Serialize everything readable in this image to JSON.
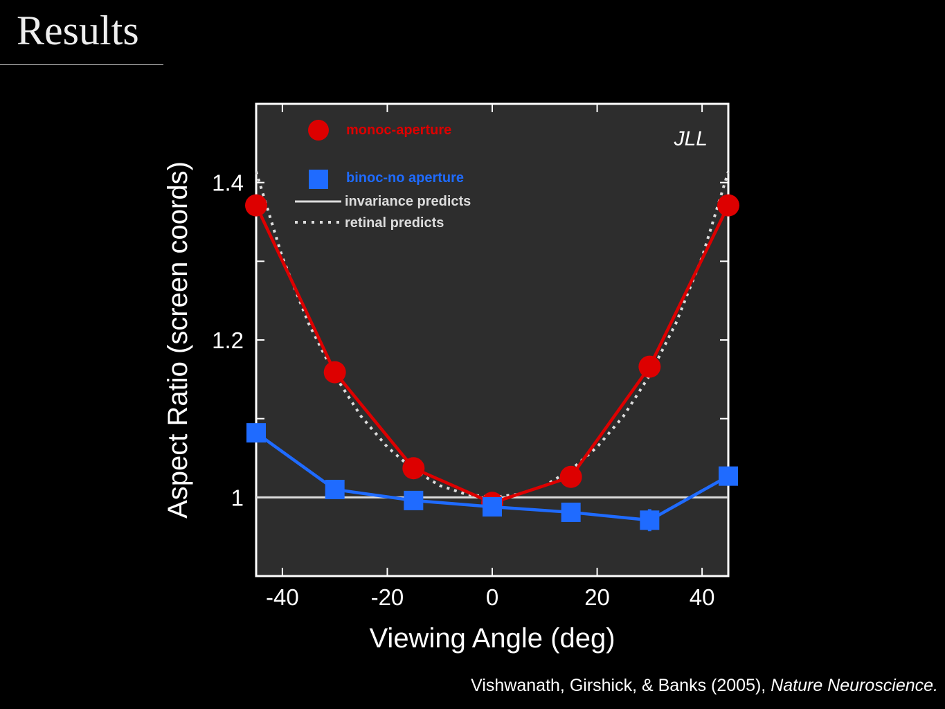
{
  "slide": {
    "title": "Results",
    "citation_authors": "Vishwanath, Girshick, & Banks (2005),",
    "citation_journal": "Nature Neuroscience."
  },
  "chart_data": {
    "type": "line",
    "subject_label": "JLL",
    "xlabel": "Viewing Angle (deg)",
    "ylabel": "Aspect Ratio (screen coords)",
    "xlim": [
      -45,
      45
    ],
    "ylim": [
      0.9,
      1.5
    ],
    "x_ticks": [
      -40,
      -20,
      0,
      20,
      40
    ],
    "x_tick_labels": [
      "-40",
      "-20",
      "0",
      "20",
      "40"
    ],
    "y_ticks": [
      1.0,
      1.1,
      1.2,
      1.3,
      1.4
    ],
    "y_tick_labels": [
      "1",
      "",
      "1.2",
      "",
      "1.4"
    ],
    "x": [
      -45,
      -30,
      -15,
      0,
      15,
      30,
      45
    ],
    "series": [
      {
        "name": "monoc-aperture",
        "color": "#dd0000",
        "marker": "circle",
        "values": [
          1.371,
          1.159,
          1.037,
          0.993,
          1.026,
          1.166,
          1.371
        ]
      },
      {
        "name": "binoc-no aperture",
        "color": "#1f6bff",
        "marker": "square",
        "values": [
          1.082,
          1.01,
          0.996,
          0.988,
          0.981,
          0.971,
          1.027
        ],
        "error": [
          0,
          0,
          0,
          0,
          0,
          0.014,
          0
        ]
      }
    ],
    "reference_lines": [
      {
        "name": "invariance predicts",
        "style": "solid",
        "color": "#dddddd",
        "y": 1.0
      },
      {
        "name": "retinal predicts",
        "style": "dotted",
        "color": "#dddddd",
        "x": [
          -45,
          -40,
          -35,
          -30,
          -25,
          -20,
          -15,
          -10,
          -5,
          0,
          5,
          10,
          15,
          20,
          25,
          30,
          35,
          40,
          45
        ],
        "values": [
          1.414,
          1.305,
          1.221,
          1.155,
          1.103,
          1.064,
          1.035,
          1.015,
          1.004,
          1.0,
          1.004,
          1.015,
          1.035,
          1.064,
          1.103,
          1.155,
          1.221,
          1.305,
          1.414
        ]
      }
    ],
    "legend_placement": "top-left"
  }
}
